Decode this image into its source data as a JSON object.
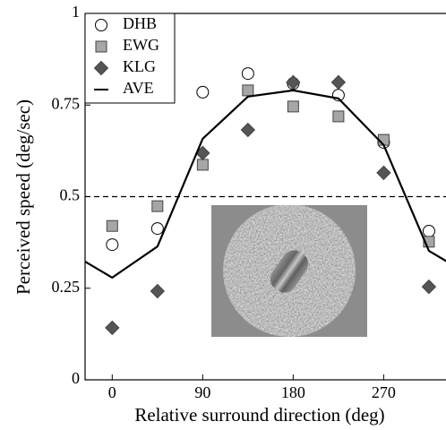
{
  "chart_data": {
    "type": "scatter",
    "xlabel": "Relative surround direction (deg)",
    "ylabel": "Perceived speed (deg/sec)",
    "x": [
      0,
      45,
      90,
      135,
      180,
      225,
      270,
      315
    ],
    "series": [
      {
        "name": "DHB",
        "marker": "circle",
        "color": "#ffffff",
        "values": [
          0.369,
          0.413,
          0.785,
          0.836,
          0.809,
          0.777,
          0.648,
          0.406
        ]
      },
      {
        "name": "EWG",
        "marker": "square",
        "color": "#a6a6a6",
        "values": [
          0.42,
          0.474,
          0.587,
          0.79,
          0.746,
          0.719,
          0.655,
          0.377
        ]
      },
      {
        "name": "KLG",
        "marker": "diamond",
        "color": "#555555",
        "values": [
          0.142,
          0.242,
          0.619,
          0.682,
          0.812,
          0.812,
          0.565,
          0.254
        ]
      },
      {
        "name": "AVE",
        "marker": "line",
        "color": "#000000",
        "x": [
          -45,
          0,
          45,
          90,
          135,
          180,
          225,
          270,
          315,
          360
        ],
        "values": [
          0.352,
          0.279,
          0.364,
          0.658,
          0.773,
          0.79,
          0.768,
          0.641,
          0.352,
          0.279
        ]
      }
    ],
    "reference_line": 0.5,
    "xlim": [
      -27,
      332
    ],
    "ylim": [
      0,
      1
    ],
    "xticks": [
      0,
      90,
      180,
      270
    ],
    "yticks": [
      0,
      0.25,
      0.5,
      0.75,
      1
    ],
    "legend": "upper left"
  }
}
